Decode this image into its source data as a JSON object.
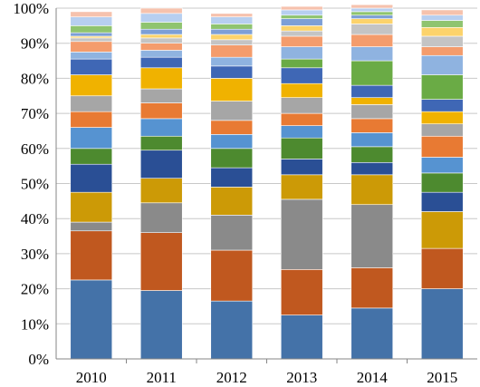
{
  "chart_data": {
    "type": "bar",
    "stacked": true,
    "percent_stacked": true,
    "categories": [
      "2010",
      "2011",
      "2012",
      "2013",
      "2014",
      "2015"
    ],
    "ylim": [
      0,
      100
    ],
    "y_ticks": [
      "0%",
      "10%",
      "20%",
      "30%",
      "40%",
      "50%",
      "60%",
      "70%",
      "80%",
      "90%",
      "100%"
    ],
    "grid": true,
    "legend": "none",
    "series": [
      {
        "color": "#4472a8",
        "values": [
          22.5,
          19.5,
          16.5,
          12.5,
          14.5,
          20.0
        ]
      },
      {
        "color": "#c0581f",
        "values": [
          14.0,
          16.5,
          14.5,
          13.0,
          11.5,
          11.5
        ]
      },
      {
        "color": "#8a8a8a",
        "values": [
          2.5,
          8.5,
          10.0,
          20.0,
          18.0,
          0.0
        ]
      },
      {
        "color": "#cc9a06",
        "values": [
          8.5,
          7.0,
          8.0,
          7.0,
          8.5,
          10.5
        ]
      },
      {
        "color": "#2a4f95",
        "values": [
          8.0,
          8.0,
          5.5,
          4.5,
          3.5,
          5.5
        ]
      },
      {
        "color": "#4d8a2f",
        "values": [
          4.5,
          4.0,
          5.5,
          6.0,
          4.5,
          5.5
        ]
      },
      {
        "color": "#5693d1",
        "values": [
          6.0,
          5.0,
          4.0,
          3.5,
          4.0,
          4.5
        ]
      },
      {
        "color": "#e87a33",
        "values": [
          4.5,
          4.5,
          4.0,
          3.5,
          4.0,
          6.0
        ]
      },
      {
        "color": "#a6a6a6",
        "values": [
          4.5,
          4.0,
          5.5,
          4.5,
          4.0,
          3.5
        ]
      },
      {
        "color": "#f0b200",
        "values": [
          6.0,
          6.0,
          6.5,
          4.0,
          2.0,
          3.5
        ]
      },
      {
        "color": "#3f67b5",
        "values": [
          4.5,
          3.0,
          3.5,
          4.5,
          3.5,
          3.5
        ]
      },
      {
        "color": "#6aab45",
        "values": [
          0.0,
          0.0,
          0.0,
          2.5,
          7.0,
          7.0
        ]
      },
      {
        "color": "#8fb3e0",
        "values": [
          2.0,
          2.0,
          2.5,
          3.5,
          4.0,
          5.5
        ]
      },
      {
        "color": "#f49c6c",
        "values": [
          3.0,
          2.0,
          3.5,
          3.0,
          3.5,
          2.5
        ]
      },
      {
        "color": "#c4c4c4",
        "values": [
          1.0,
          1.5,
          1.5,
          1.5,
          3.0,
          3.0
        ]
      },
      {
        "color": "#fcd36b",
        "values": [
          0.5,
          1.0,
          1.5,
          1.5,
          1.5,
          2.5
        ]
      },
      {
        "color": "#7d9fd6",
        "values": [
          1.0,
          1.5,
          1.5,
          2.0,
          1.0,
          0.0
        ]
      },
      {
        "color": "#8fc46f",
        "values": [
          2.0,
          2.0,
          1.5,
          1.0,
          1.0,
          2.0
        ]
      },
      {
        "color": "#b7cff0",
        "values": [
          2.5,
          2.5,
          2.0,
          1.5,
          1.0,
          1.5
        ]
      },
      {
        "color": "#f6c2ad",
        "values": [
          1.5,
          1.5,
          1.0,
          1.0,
          1.0,
          1.5
        ]
      }
    ]
  }
}
